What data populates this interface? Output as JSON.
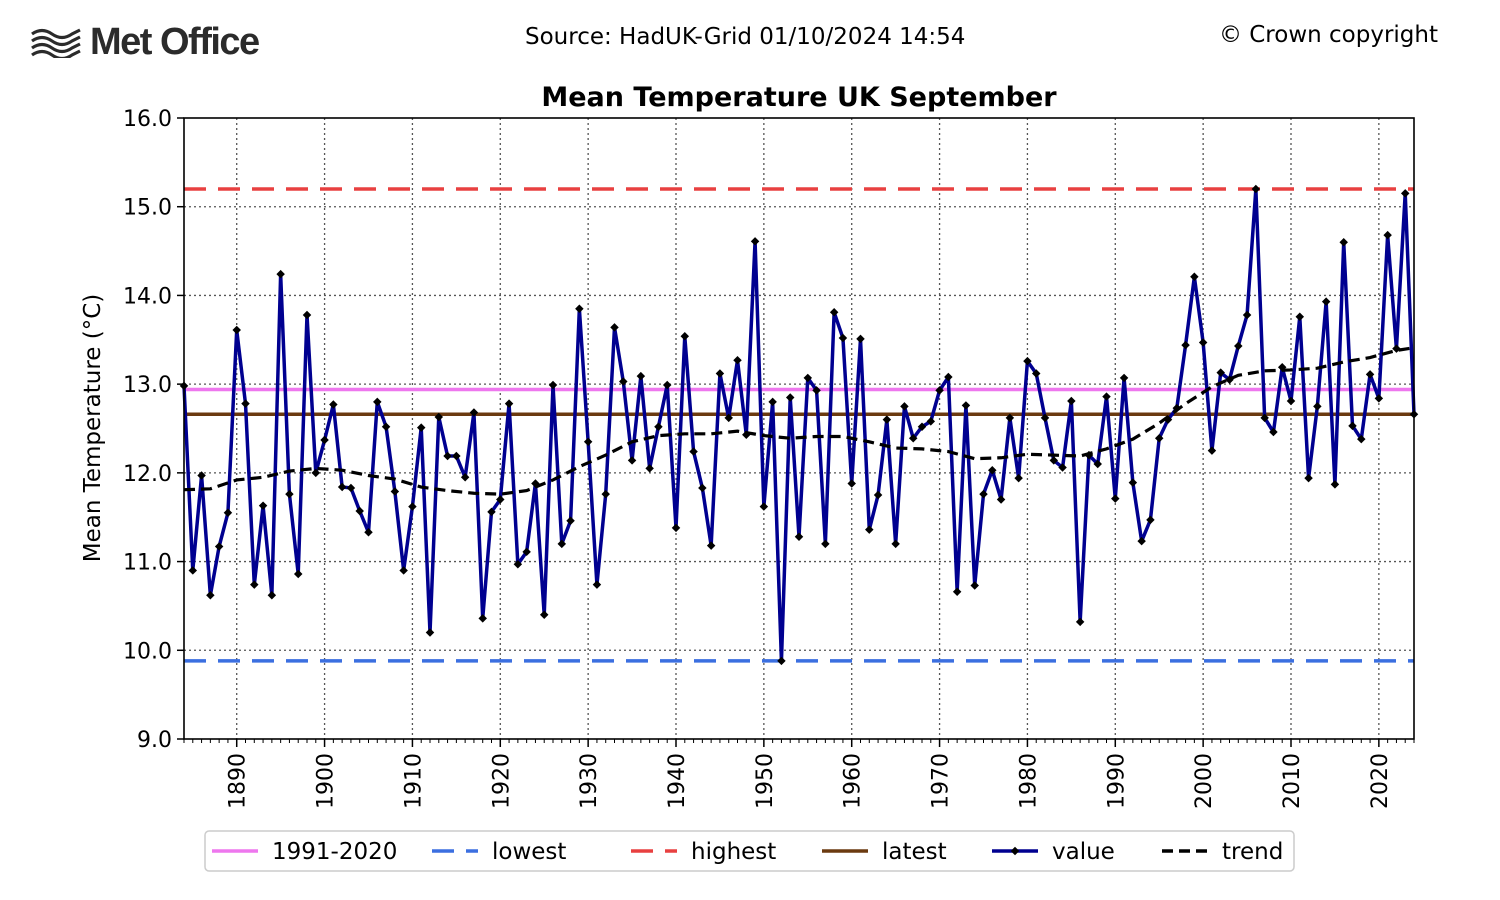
{
  "header": {
    "logo_text": "Met Office",
    "source": "Source: HadUK-Grid 01/10/2024 14:54",
    "copyright": "© Crown copyright"
  },
  "colors": {
    "baseline": "#ee77ee",
    "lowest": "#3b6fe0",
    "highest": "#e84040",
    "latest": "#6b3a10",
    "value": "#000090",
    "trend": "#000000"
  },
  "chart_data": {
    "type": "line",
    "title": "Mean Temperature UK September",
    "ylabel": "Mean Temperature (°C)",
    "xlabel": "",
    "xlim": [
      1884,
      2024
    ],
    "ylim": [
      9.0,
      16.0
    ],
    "xticks": [
      1890,
      1900,
      1910,
      1920,
      1930,
      1940,
      1950,
      1960,
      1970,
      1980,
      1990,
      2000,
      2010,
      2020
    ],
    "yticks": [
      9.0,
      10.0,
      11.0,
      12.0,
      13.0,
      14.0,
      15.0,
      16.0
    ],
    "grid": true,
    "legend_position": "bottom",
    "legend": [
      "1991-2020",
      "lowest",
      "highest",
      "latest",
      "value",
      "trend"
    ],
    "reference_lines": {
      "1991-2020": 12.94,
      "lowest": 9.88,
      "highest": 15.2,
      "latest": 12.66
    },
    "series": [
      {
        "name": "value",
        "x_start": 1884,
        "values": [
          12.98,
          10.9,
          11.97,
          10.62,
          11.17,
          11.55,
          13.61,
          12.78,
          10.74,
          11.63,
          10.62,
          14.24,
          11.76,
          10.86,
          13.78,
          12.0,
          12.37,
          12.77,
          11.84,
          11.83,
          11.57,
          11.33,
          12.8,
          12.52,
          11.79,
          10.9,
          11.62,
          12.51,
          10.2,
          12.63,
          12.19,
          12.19,
          11.95,
          12.68,
          10.36,
          11.56,
          11.7,
          12.78,
          10.97,
          11.11,
          11.88,
          10.4,
          12.99,
          11.2,
          11.46,
          13.85,
          12.35,
          10.74,
          11.76,
          13.64,
          13.03,
          12.14,
          13.09,
          12.05,
          12.52,
          12.99,
          11.38,
          13.54,
          12.24,
          11.83,
          11.18,
          13.12,
          12.62,
          13.27,
          12.43,
          14.61,
          11.62,
          12.8,
          9.88,
          12.85,
          11.28,
          13.07,
          12.93,
          11.2,
          13.81,
          13.52,
          11.88,
          13.51,
          11.36,
          11.75,
          12.6,
          11.2,
          12.75,
          12.39,
          12.52,
          12.58,
          12.93,
          13.08,
          10.66,
          12.76,
          10.73,
          11.76,
          12.03,
          11.7,
          12.62,
          11.94,
          13.26,
          13.12,
          12.62,
          12.14,
          12.06,
          12.81,
          10.32,
          12.2,
          12.1,
          12.86,
          11.71,
          13.07,
          11.89,
          11.23,
          11.47,
          12.39,
          12.6,
          12.73,
          13.44,
          14.21,
          13.47,
          12.25,
          13.13,
          13.05,
          13.43,
          13.78,
          15.2,
          12.62,
          12.46,
          13.19,
          12.81,
          13.76,
          11.94,
          12.75,
          13.93,
          11.87,
          14.6,
          12.53,
          12.38,
          13.11,
          12.84,
          14.68,
          13.4,
          15.15,
          12.66
        ]
      },
      {
        "name": "trend",
        "points": [
          [
            1884,
            11.81
          ],
          [
            1887,
            11.82
          ],
          [
            1890,
            11.92
          ],
          [
            1893,
            11.95
          ],
          [
            1896,
            12.02
          ],
          [
            1899,
            12.05
          ],
          [
            1902,
            12.03
          ],
          [
            1905,
            11.97
          ],
          [
            1908,
            11.93
          ],
          [
            1911,
            11.84
          ],
          [
            1914,
            11.8
          ],
          [
            1917,
            11.77
          ],
          [
            1920,
            11.76
          ],
          [
            1923,
            11.8
          ],
          [
            1926,
            11.92
          ],
          [
            1929,
            12.07
          ],
          [
            1932,
            12.2
          ],
          [
            1935,
            12.35
          ],
          [
            1938,
            12.42
          ],
          [
            1941,
            12.44
          ],
          [
            1944,
            12.44
          ],
          [
            1947,
            12.47
          ],
          [
            1950,
            12.42
          ],
          [
            1953,
            12.39
          ],
          [
            1956,
            12.41
          ],
          [
            1959,
            12.41
          ],
          [
            1962,
            12.35
          ],
          [
            1965,
            12.28
          ],
          [
            1968,
            12.27
          ],
          [
            1971,
            12.24
          ],
          [
            1974,
            12.16
          ],
          [
            1977,
            12.17
          ],
          [
            1980,
            12.21
          ],
          [
            1983,
            12.2
          ],
          [
            1986,
            12.19
          ],
          [
            1989,
            12.27
          ],
          [
            1992,
            12.38
          ],
          [
            1995,
            12.56
          ],
          [
            1998,
            12.78
          ],
          [
            2001,
            12.97
          ],
          [
            2004,
            13.1
          ],
          [
            2007,
            13.15
          ],
          [
            2010,
            13.16
          ],
          [
            2013,
            13.18
          ],
          [
            2016,
            13.25
          ],
          [
            2019,
            13.3
          ],
          [
            2022,
            13.38
          ],
          [
            2024,
            13.41
          ]
        ]
      }
    ]
  }
}
